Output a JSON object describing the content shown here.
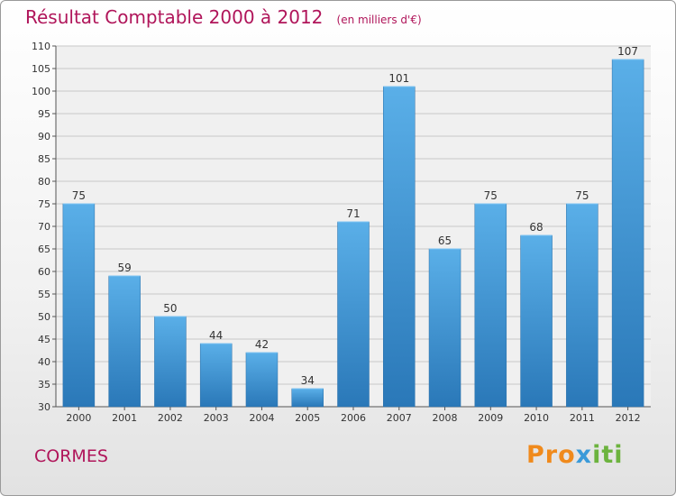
{
  "title": "Résultat Comptable 2000 à 2012",
  "unit_note": "(en milliers d'€)",
  "commune": "CORMES",
  "logo": {
    "part1": "Pro",
    "part2": "x",
    "part3": "iti"
  },
  "colors": {
    "bar_top": "#5aafe8",
    "bar_bottom": "#2a78b8",
    "title": "#b0155a"
  },
  "chart_data": {
    "type": "bar",
    "title": "Résultat Comptable 2000 à 2012",
    "ylabel": "(en milliers d'€)",
    "xlabel": "",
    "categories": [
      "2000",
      "2001",
      "2002",
      "2003",
      "2004",
      "2005",
      "2006",
      "2007",
      "2008",
      "2009",
      "2010",
      "2011",
      "2012"
    ],
    "values": [
      75,
      59,
      50,
      44,
      42,
      34,
      71,
      101,
      65,
      75,
      68,
      75,
      107
    ],
    "ylim": [
      30,
      110
    ],
    "yticks": [
      30,
      35,
      40,
      45,
      50,
      55,
      60,
      65,
      70,
      75,
      80,
      85,
      90,
      95,
      100,
      105,
      110
    ],
    "grid": true
  }
}
